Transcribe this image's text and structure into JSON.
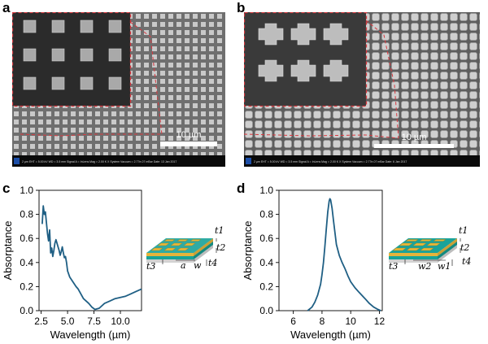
{
  "panels": {
    "a": {
      "letter": "a",
      "scalebar_label": "10 µm",
      "footer": "2 µm  EHT = 5.00 kV  WD = 3.5 mm  Signal A = InLens  Mag = 2.00 K X  System Vacuum = 2.77e-07 mBar  Date: 13 Jan 2017"
    },
    "b": {
      "letter": "b",
      "scalebar_label": "10 µm",
      "footer": "2 µm  EHT = 5.00 kV  WD = 3.5 mm  Signal A = InLens  Mag = 2.00 K X  System Vacuum = 2.77e-07 mBar  Date: 6 Jan 2017"
    },
    "c": {
      "letter": "c",
      "schematic_labels": [
        "t1",
        "t2",
        "t3",
        "t4",
        "a",
        "w"
      ]
    },
    "d": {
      "letter": "d",
      "schematic_labels": [
        "t1",
        "t2",
        "t3",
        "t4",
        "w2",
        "w1"
      ]
    }
  },
  "colors": {
    "line": "#1f5f84",
    "gold": "#e8b83a",
    "teal": "#1aa39a",
    "dash": "#d9383f"
  },
  "chart_data": [
    {
      "id": "c",
      "type": "line",
      "title": "",
      "xlabel": "Wavelength (µm)",
      "ylabel": "Absorptance",
      "xlim": [
        2.3,
        12
      ],
      "ylim": [
        0,
        1.0
      ],
      "xticks": [
        2.5,
        5.0,
        7.5,
        10.0
      ],
      "xtick_labels": [
        "2.5",
        "5.0",
        "7.5",
        "10.0"
      ],
      "yticks": [
        0,
        0.2,
        0.4,
        0.6,
        0.8,
        1.0
      ],
      "ytick_labels": [
        "0.0",
        "0.2",
        "0.4",
        "0.6",
        "0.8",
        "1.0"
      ],
      "series": [
        {
          "x": [
            2.6,
            2.7,
            2.8,
            2.9,
            3.0,
            3.1,
            3.2,
            3.3,
            3.4,
            3.5,
            3.6,
            3.7,
            3.8,
            3.9,
            4.0,
            4.1,
            4.2,
            4.3,
            4.4,
            4.5,
            4.6,
            4.7,
            4.8,
            4.9,
            5.0,
            5.2,
            5.5,
            5.8,
            6.0,
            6.5,
            7.0,
            7.3,
            7.6,
            8.0,
            8.5,
            9.0,
            9.5,
            10.0,
            10.5,
            11.0,
            11.5,
            12.0
          ],
          "y": [
            0.72,
            0.87,
            0.8,
            0.82,
            0.73,
            0.64,
            0.58,
            0.67,
            0.48,
            0.52,
            0.45,
            0.5,
            0.56,
            0.59,
            0.56,
            0.53,
            0.5,
            0.46,
            0.49,
            0.53,
            0.48,
            0.44,
            0.45,
            0.4,
            0.33,
            0.28,
            0.24,
            0.2,
            0.18,
            0.1,
            0.06,
            0.03,
            0.01,
            0.02,
            0.06,
            0.08,
            0.1,
            0.11,
            0.12,
            0.14,
            0.16,
            0.18
          ]
        }
      ]
    },
    {
      "id": "d",
      "type": "line",
      "title": "",
      "xlabel": "Wavelength (µm)",
      "ylabel": "Absorptance",
      "xlim": [
        5,
        12.2
      ],
      "ylim": [
        0,
        1.0
      ],
      "xticks": [
        6,
        8,
        10,
        12
      ],
      "xtick_labels": [
        "6",
        "8",
        "10",
        "12"
      ],
      "yticks": [
        0,
        0.2,
        0.4,
        0.6,
        0.8,
        1.0
      ],
      "ytick_labels": [
        "0.0",
        "0.2",
        "0.4",
        "0.6",
        "0.8",
        "1.0"
      ],
      "series": [
        {
          "x": [
            7.0,
            7.3,
            7.5,
            7.7,
            7.9,
            8.0,
            8.1,
            8.2,
            8.3,
            8.4,
            8.5,
            8.55,
            8.6,
            8.7,
            8.8,
            8.9,
            9.0,
            9.2,
            9.4,
            9.6,
            9.8,
            10.0,
            10.3,
            10.6,
            11.0,
            11.3,
            11.6,
            11.9,
            12.1
          ],
          "y": [
            0.0,
            0.03,
            0.07,
            0.13,
            0.22,
            0.3,
            0.4,
            0.53,
            0.68,
            0.82,
            0.91,
            0.93,
            0.92,
            0.85,
            0.75,
            0.65,
            0.55,
            0.46,
            0.4,
            0.35,
            0.29,
            0.24,
            0.19,
            0.15,
            0.1,
            0.06,
            0.03,
            0.01,
            0.0
          ]
        }
      ]
    }
  ]
}
